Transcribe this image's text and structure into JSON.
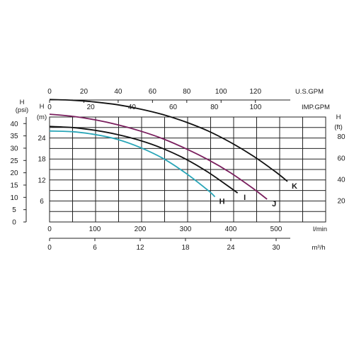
{
  "chart_data": {
    "type": "line",
    "title": "",
    "x_axes": {
      "flow_lmin": {
        "label": "l/min",
        "ticks": [
          0,
          100,
          200,
          300,
          400,
          500
        ],
        "range": [
          0,
          500
        ]
      },
      "flow_m3h": {
        "label": "m³/h",
        "ticks": [
          0,
          6,
          12,
          18,
          24,
          30
        ],
        "range": [
          0,
          30
        ]
      },
      "flow_usgpm": {
        "label": "U.S.GPM",
        "ticks": [
          0,
          20,
          40,
          60,
          80,
          100,
          120
        ]
      },
      "flow_impgpm": {
        "label": "IMP.GPM",
        "ticks": [
          0,
          20,
          40,
          60,
          80,
          100
        ]
      }
    },
    "y_axes": {
      "head_m": {
        "label_top": "H",
        "label_unit": "(m)",
        "ticks": [
          6,
          12,
          18,
          24
        ],
        "range": [
          0,
          30
        ]
      },
      "head_ft": {
        "label_top": "H",
        "label_unit": "(ft)",
        "ticks": [
          20,
          40,
          60,
          80
        ]
      },
      "head_psi": {
        "label_top": "H",
        "label_unit": "(psi)",
        "ticks": [
          0,
          5,
          10,
          15,
          20,
          25,
          30,
          35,
          40
        ]
      }
    },
    "grid": true,
    "series": [
      {
        "name": "H",
        "color": "#2aa6b8",
        "x_lmin": [
          0,
          50,
          100,
          150,
          200,
          250,
          300,
          350,
          365
        ],
        "y_m": [
          26.0,
          25.8,
          25.0,
          23.6,
          21.3,
          18.2,
          14.0,
          9.0,
          7.2
        ]
      },
      {
        "name": "I",
        "color": "#111111",
        "x_lmin": [
          0,
          50,
          100,
          150,
          200,
          250,
          300,
          350,
          400,
          415
        ],
        "y_m": [
          27.3,
          27.0,
          26.2,
          25.0,
          23.3,
          21.0,
          18.0,
          14.2,
          9.7,
          8.3
        ]
      },
      {
        "name": "J",
        "color": "#7a1f5e",
        "x_lmin": [
          0,
          50,
          100,
          150,
          200,
          250,
          300,
          350,
          400,
          450,
          480
        ],
        "y_m": [
          30.8,
          30.2,
          29.2,
          27.8,
          26.0,
          23.8,
          21.0,
          17.8,
          14.0,
          9.5,
          6.5
        ]
      },
      {
        "name": "K",
        "color": "#111111",
        "x_lmin": [
          0,
          50,
          100,
          150,
          200,
          250,
          300,
          350,
          400,
          450,
          500,
          525
        ],
        "y_m": [
          35.0,
          34.8,
          34.3,
          33.5,
          32.3,
          30.7,
          28.6,
          26.0,
          22.7,
          18.8,
          14.2,
          11.6
        ]
      }
    ]
  }
}
